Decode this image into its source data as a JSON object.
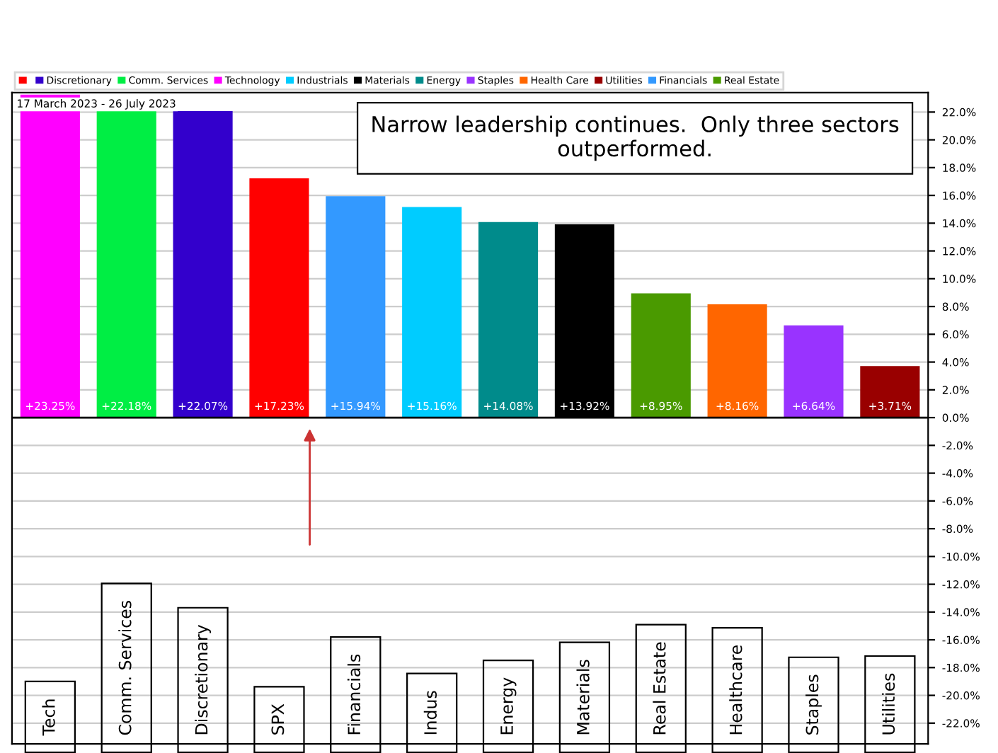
{
  "chart_data": {
    "type": "bar",
    "categories": [
      "Tech",
      "Comm. Services",
      "Discretionary",
      "SPX",
      "Financials",
      "Indus",
      "Energy",
      "Materials",
      "Real Estate",
      "Healthcare",
      "Staples",
      "Utilities"
    ],
    "series": [
      {
        "name": null,
        "color": "#ff0000",
        "values": [
          null,
          null,
          null,
          17.23,
          null,
          null,
          null,
          null,
          null,
          null,
          null,
          null
        ],
        "value_labels": [
          null,
          null,
          null,
          "+17.23%",
          null,
          null,
          null,
          null,
          null,
          null,
          null,
          null
        ]
      },
      {
        "name": "Discretionary",
        "color": "#3300cc",
        "values": [
          null,
          null,
          22.07,
          null,
          null,
          null,
          null,
          null,
          null,
          null,
          null,
          null
        ],
        "value_labels": [
          null,
          null,
          "+22.07%",
          null,
          null,
          null,
          null,
          null,
          null,
          null,
          null,
          null
        ]
      },
      {
        "name": "Comm. Services",
        "color": "#00ee44",
        "values": [
          null,
          22.18,
          null,
          null,
          null,
          null,
          null,
          null,
          null,
          null,
          null,
          null
        ],
        "value_labels": [
          null,
          "+22.18%",
          null,
          null,
          null,
          null,
          null,
          null,
          null,
          null,
          null,
          null
        ]
      },
      {
        "name": "Technology",
        "color": "#ff00ff",
        "values": [
          23.25,
          null,
          null,
          null,
          null,
          null,
          null,
          null,
          null,
          null,
          null,
          null
        ],
        "value_labels": [
          "+23.25%",
          null,
          null,
          null,
          null,
          null,
          null,
          null,
          null,
          null,
          null,
          null
        ]
      },
      {
        "name": "Industrials",
        "color": "#00ccff",
        "values": [
          null,
          null,
          null,
          null,
          null,
          15.16,
          null,
          null,
          null,
          null,
          null,
          null
        ],
        "value_labels": [
          null,
          null,
          null,
          null,
          null,
          "+15.16%",
          null,
          null,
          null,
          null,
          null,
          null
        ]
      },
      {
        "name": "Materials",
        "color": "#000000",
        "values": [
          null,
          null,
          null,
          null,
          null,
          null,
          null,
          13.92,
          null,
          null,
          null,
          null
        ],
        "value_labels": [
          null,
          null,
          null,
          null,
          null,
          null,
          null,
          "+13.92%",
          null,
          null,
          null,
          null
        ]
      },
      {
        "name": "Energy",
        "color": "#008b8b",
        "values": [
          null,
          null,
          null,
          null,
          null,
          null,
          14.08,
          null,
          null,
          null,
          null,
          null
        ],
        "value_labels": [
          null,
          null,
          null,
          null,
          null,
          null,
          "+14.08%",
          null,
          null,
          null,
          null,
          null
        ]
      },
      {
        "name": "Staples",
        "color": "#9933ff",
        "values": [
          null,
          null,
          null,
          null,
          null,
          null,
          null,
          null,
          null,
          null,
          6.64,
          null
        ],
        "value_labels": [
          null,
          null,
          null,
          null,
          null,
          null,
          null,
          null,
          null,
          null,
          "+6.64%",
          null
        ]
      },
      {
        "name": "Health Care",
        "color": "#ff6600",
        "values": [
          null,
          null,
          null,
          null,
          null,
          null,
          null,
          null,
          null,
          8.16,
          null,
          null
        ],
        "value_labels": [
          null,
          null,
          null,
          null,
          null,
          null,
          null,
          null,
          null,
          "+8.16%",
          null,
          null
        ]
      },
      {
        "name": "Utilities",
        "color": "#990000",
        "values": [
          null,
          null,
          null,
          null,
          null,
          null,
          null,
          null,
          null,
          null,
          null,
          3.71
        ],
        "value_labels": [
          null,
          null,
          null,
          null,
          null,
          null,
          null,
          null,
          null,
          null,
          null,
          "+3.71%"
        ]
      },
      {
        "name": "Financials",
        "color": "#3399ff",
        "values": [
          null,
          null,
          null,
          null,
          15.94,
          null,
          null,
          null,
          null,
          null,
          null,
          null
        ],
        "value_labels": [
          null,
          null,
          null,
          null,
          "+15.94%",
          null,
          null,
          null,
          null,
          null,
          null,
          null
        ]
      },
      {
        "name": "Real Estate",
        "color": "#4a9a00",
        "values": [
          null,
          null,
          null,
          null,
          null,
          null,
          null,
          null,
          8.95,
          null,
          null,
          null
        ],
        "value_labels": [
          null,
          null,
          null,
          null,
          null,
          null,
          null,
          null,
          "+8.95%",
          null,
          null,
          null
        ]
      }
    ],
    "ylim": [
      -23.5,
      23.4
    ],
    "yticks": [
      {
        "value": 22,
        "label": "22.0%"
      },
      {
        "value": 20,
        "label": "20.0%"
      },
      {
        "value": 18,
        "label": "18.0%"
      },
      {
        "value": 16,
        "label": "16.0%"
      },
      {
        "value": 14,
        "label": "14.0%"
      },
      {
        "value": 12,
        "label": "12.0%"
      },
      {
        "value": 10,
        "label": "10.0%"
      },
      {
        "value": 8,
        "label": "8.0%"
      },
      {
        "value": 6,
        "label": "6.0%"
      },
      {
        "value": 4,
        "label": "4.0%"
      },
      {
        "value": 2,
        "label": "2.0%"
      },
      {
        "value": 0,
        "label": "0.0%"
      },
      {
        "value": -2,
        "label": "-2.0%"
      },
      {
        "value": -4,
        "label": "-4.0%"
      },
      {
        "value": -6,
        "label": "-6.0%"
      },
      {
        "value": -8,
        "label": "-8.0%"
      },
      {
        "value": -10,
        "label": "-10.0%"
      },
      {
        "value": -12,
        "label": "-12.0%"
      },
      {
        "value": -14,
        "label": "-14.0%"
      },
      {
        "value": -16,
        "label": "-16.0%"
      },
      {
        "value": -18,
        "label": "-18.0%"
      },
      {
        "value": -20,
        "label": "-20.0%"
      },
      {
        "value": -22,
        "label": "-22.0%"
      }
    ],
    "ref_lines": [
      {
        "axis": "y",
        "value": 0,
        "color": "#000000"
      }
    ],
    "grid": "y",
    "legend": "top",
    "annotations": [
      "17 March 2023 - 26 July 2023",
      "Narrow leadership continues.  Only three sectors outperformed."
    ]
  }
}
